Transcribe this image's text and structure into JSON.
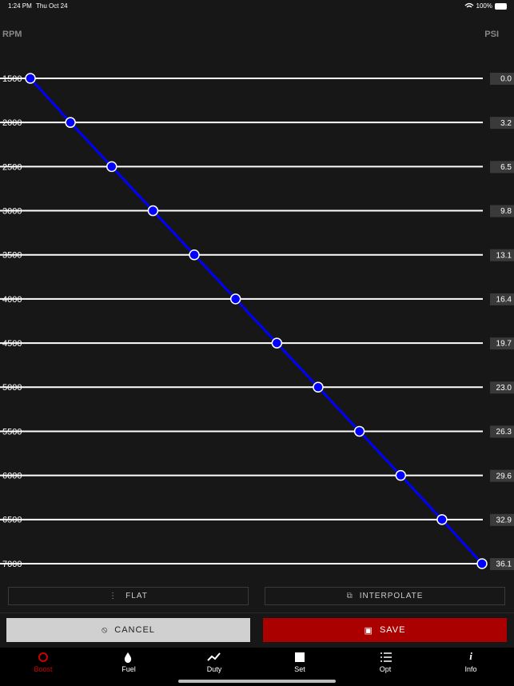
{
  "status": {
    "time": "1:24 PM",
    "date": "Thu Oct 24",
    "battery": "100%"
  },
  "chart_data": {
    "type": "line",
    "x_label": "PSI",
    "y_label": "RPM",
    "categories": [
      "1500",
      "2000",
      "2500",
      "3000",
      "3500",
      "4000",
      "4500",
      "5000",
      "5500",
      "6000",
      "6500",
      "7000"
    ],
    "values": [
      0.0,
      3.2,
      6.5,
      9.8,
      13.1,
      16.4,
      19.7,
      23.0,
      26.3,
      29.6,
      32.9,
      36.1
    ],
    "value_labels": [
      "0.0",
      "3.2",
      "6.5",
      "9.8",
      "13.1",
      "16.4",
      "19.7",
      "23.0",
      "26.3",
      "29.6",
      "32.9",
      "36.1"
    ],
    "xlim": [
      0,
      36.1
    ],
    "color": "#0000ff"
  },
  "tools": {
    "flat": "FLAT",
    "interpolate": "INTERPOLATE"
  },
  "actions": {
    "cancel": "CANCEL",
    "save": "SAVE"
  },
  "tabs": [
    {
      "label": "Boost"
    },
    {
      "label": "Fuel"
    },
    {
      "label": "Duty"
    },
    {
      "label": "Set"
    },
    {
      "label": "Opt"
    },
    {
      "label": "Info"
    }
  ]
}
